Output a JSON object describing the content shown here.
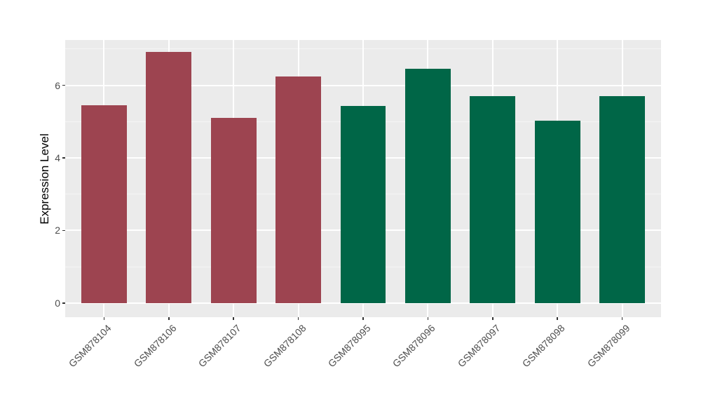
{
  "chart_data": {
    "type": "bar",
    "title": "",
    "xlabel": "",
    "ylabel": "Expression Level",
    "categories": [
      "GSM878104",
      "GSM878106",
      "GSM878107",
      "GSM878108",
      "GSM878095",
      "GSM878096",
      "GSM878097",
      "GSM878098",
      "GSM878099"
    ],
    "values": [
      5.46,
      6.93,
      5.1,
      6.25,
      5.43,
      6.46,
      5.7,
      5.02,
      5.7
    ],
    "bar_colors": [
      "#9D4450",
      "#9D4450",
      "#9D4450",
      "#9D4450",
      "#006647",
      "#006647",
      "#006647",
      "#006647",
      "#006647"
    ],
    "ylim": [
      -0.39,
      7.25
    ],
    "yticks": [
      0,
      2,
      4,
      6
    ],
    "yticks_minor": [
      1,
      3,
      5,
      7
    ],
    "ytick_labels": [
      "0",
      "2",
      "4",
      "6"
    ],
    "grid": true,
    "legend_position": "none",
    "panel_bg": "#EBEBEB",
    "grid_major_color": "#FFFFFF",
    "grid_minor_color": "#F5F5F5",
    "axis_text_color": "#4D4D4D",
    "axis_title_color": "#000000",
    "tick_color": "#333333",
    "x_label_angle": -45
  }
}
